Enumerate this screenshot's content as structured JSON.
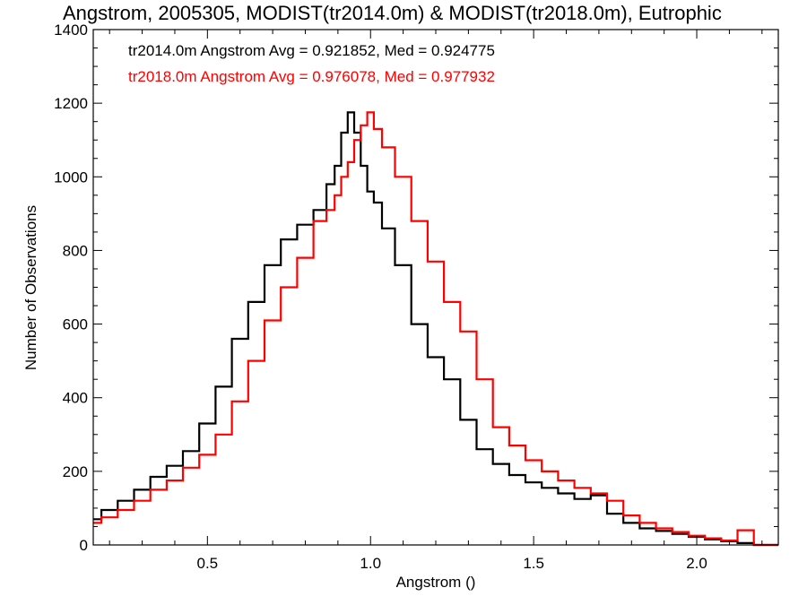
{
  "chart_data": {
    "type": "line",
    "title": "Angstrom, 2005305, MODIST(tr2014.0m) & MODIST(tr2018.0m), Eutrophic",
    "xlabel": "Angstrom ()",
    "ylabel": "Number of Observations",
    "xlim": [
      0.15,
      2.25
    ],
    "ylim": [
      0,
      1400
    ],
    "xticks": [
      0.5,
      1.0,
      1.5,
      2.0
    ],
    "xtick_labels": [
      "0.5",
      "1.0",
      "1.5",
      "2.0"
    ],
    "yticks": [
      0,
      200,
      400,
      600,
      800,
      1000,
      1200,
      1400
    ],
    "ytick_labels": [
      "0",
      "200",
      "400",
      "600",
      "800",
      "1000",
      "1200",
      "1400"
    ],
    "grid": false,
    "annotations": [
      {
        "text": "tr2014.0m Angstrom Avg = 0.921852, Med = 0.924775",
        "color": "#000000"
      },
      {
        "text": "tr2018.0m Angstrom Avg = 0.976078, Med = 0.977932",
        "color": "#ff0000"
      }
    ],
    "series": [
      {
        "color": "#000000",
        "step": "mid",
        "x": [
          0.15,
          0.2,
          0.25,
          0.3,
          0.35,
          0.4,
          0.45,
          0.5,
          0.55,
          0.6,
          0.65,
          0.7,
          0.75,
          0.8,
          0.85,
          0.88,
          0.9,
          0.92,
          0.94,
          0.96,
          0.98,
          1.0,
          1.02,
          1.05,
          1.1,
          1.15,
          1.2,
          1.25,
          1.3,
          1.35,
          1.4,
          1.45,
          1.5,
          1.55,
          1.6,
          1.65,
          1.7,
          1.75,
          1.8,
          1.85,
          1.9,
          1.95,
          2.0,
          2.05,
          2.1,
          2.15,
          2.2,
          2.25
        ],
        "y": [
          70,
          95,
          120,
          150,
          185,
          215,
          255,
          330,
          430,
          560,
          660,
          760,
          830,
          870,
          910,
          980,
          1030,
          1120,
          1175,
          1120,
          1030,
          960,
          930,
          860,
          760,
          600,
          510,
          450,
          340,
          260,
          220,
          190,
          170,
          155,
          140,
          125,
          135,
          85,
          60,
          45,
          38,
          30,
          22,
          15,
          10,
          5,
          0,
          0
        ]
      },
      {
        "color": "#ff0000",
        "step": "mid",
        "x": [
          0.15,
          0.2,
          0.25,
          0.3,
          0.35,
          0.4,
          0.45,
          0.5,
          0.55,
          0.6,
          0.65,
          0.7,
          0.75,
          0.8,
          0.85,
          0.88,
          0.9,
          0.92,
          0.94,
          0.96,
          0.98,
          1.0,
          1.02,
          1.05,
          1.1,
          1.15,
          1.2,
          1.25,
          1.3,
          1.35,
          1.4,
          1.45,
          1.5,
          1.55,
          1.6,
          1.65,
          1.7,
          1.75,
          1.8,
          1.85,
          1.9,
          1.95,
          2.0,
          2.05,
          2.1,
          2.15,
          2.2,
          2.25
        ],
        "y": [
          60,
          75,
          95,
          120,
          150,
          175,
          210,
          245,
          300,
          390,
          500,
          610,
          700,
          780,
          880,
          910,
          950,
          1000,
          1040,
          1100,
          1140,
          1175,
          1130,
          1080,
          1000,
          880,
          770,
          660,
          580,
          450,
          320,
          270,
          230,
          200,
          175,
          155,
          140,
          120,
          80,
          60,
          45,
          35,
          25,
          18,
          12,
          40,
          0,
          0
        ]
      }
    ]
  }
}
